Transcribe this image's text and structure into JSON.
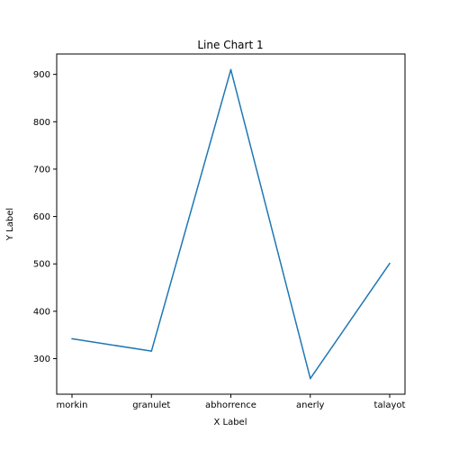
{
  "chart_data": {
    "type": "line",
    "title": "Line Chart 1",
    "xlabel": "X Label",
    "ylabel": "Y Label",
    "categories": [
      "morkin",
      "granulet",
      "abhorrence",
      "anerly",
      "talayot"
    ],
    "series": [
      {
        "values": [
          342,
          316,
          910,
          258,
          501
        ],
        "color": "#1f77b4"
      }
    ],
    "ylim": [
      225,
      943
    ],
    "yticks": [
      300,
      400,
      500,
      600,
      700,
      800,
      900
    ],
    "grid": false,
    "legend": "none"
  }
}
